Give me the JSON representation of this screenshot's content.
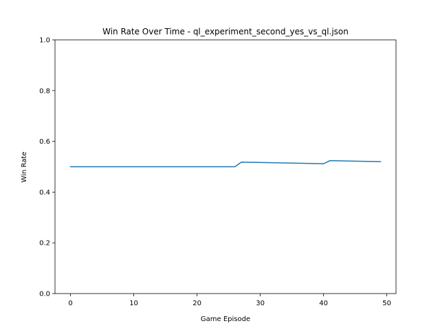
{
  "chart_data": {
    "type": "line",
    "title": "Win Rate Over Time - ql_experiment_second_yes_vs_ql.json",
    "xlabel": "Game Episode",
    "ylabel": "Win Rate",
    "xlim": [
      -2.45,
      51.45
    ],
    "ylim": [
      0.0,
      1.0
    ],
    "xticks": [
      0,
      10,
      20,
      30,
      40,
      50
    ],
    "yticks": [
      0.0,
      0.2,
      0.4,
      0.6,
      0.8,
      1.0
    ],
    "xtick_labels": [
      "0",
      "10",
      "20",
      "30",
      "40",
      "50"
    ],
    "ytick_labels": [
      "0.0",
      "0.2",
      "0.4",
      "0.6",
      "0.8",
      "1.0"
    ],
    "grid": false,
    "series": [
      {
        "color": "#1f77b4",
        "x": [
          0,
          26,
          27,
          40,
          41,
          49
        ],
        "y": [
          0.5,
          0.5,
          0.518,
          0.512,
          0.524,
          0.52
        ]
      }
    ]
  }
}
